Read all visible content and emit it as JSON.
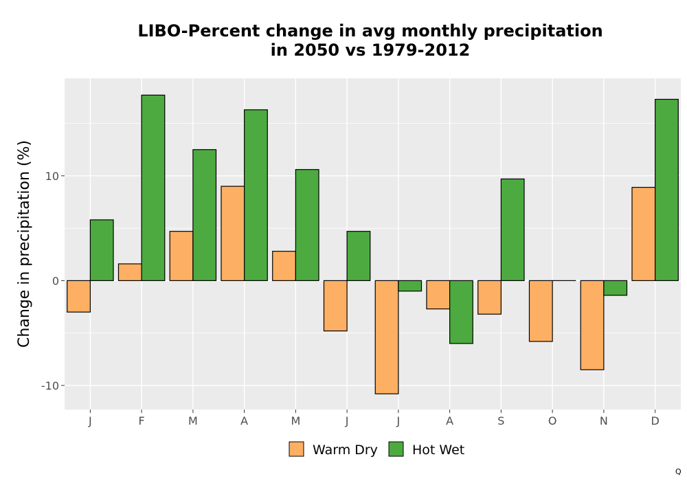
{
  "chart_data": {
    "type": "bar",
    "title_line1": "LIBO-Percent change in avg monthly precipitation",
    "title_line2": "in 2050 vs 1979-2012",
    "xlabel": "",
    "ylabel": "Change in precipitation (%)",
    "categories": [
      "J",
      "F",
      "M",
      "A",
      "M",
      "J",
      "J",
      "A",
      "S",
      "O",
      "N",
      "D"
    ],
    "series": [
      {
        "name": "Warm Dry",
        "color": "#FDB063",
        "values": [
          -3.0,
          1.6,
          4.7,
          9.0,
          2.8,
          -4.8,
          -10.8,
          -2.7,
          -3.2,
          -5.8,
          -8.5,
          8.9
        ]
      },
      {
        "name": "Hot Wet",
        "color": "#4DAA41",
        "values": [
          5.8,
          17.7,
          12.5,
          16.3,
          10.6,
          4.7,
          -1.0,
          -6.0,
          9.7,
          0.0,
          -1.4,
          17.3
        ]
      }
    ],
    "ylim": [
      -12.3,
      19.3
    ],
    "yticks": [
      -10,
      0,
      10
    ],
    "grid": true,
    "legend_position": "bottom",
    "background": "#EBEBEB"
  },
  "corner_mark": "Q"
}
